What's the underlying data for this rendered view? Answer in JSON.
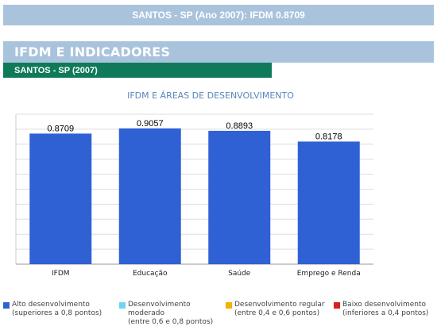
{
  "top_banner": {
    "title": "SANTOS - SP (Ano 2007): IFDM 0.8709"
  },
  "section": {
    "title": "IFDM E INDICADORES"
  },
  "subsection": {
    "title": "SANTOS - SP (2007)"
  },
  "chart_data": {
    "type": "bar",
    "title": "IFDM E ÁREAS DE DESENVOLVIMENTO",
    "categories": [
      "IFDM",
      "Educação",
      "Saúde",
      "Emprego e Renda"
    ],
    "values": [
      0.8709,
      0.9057,
      0.8893,
      0.8178
    ],
    "value_labels": [
      "0.8709",
      "0.9057",
      "0.8893",
      "0.8178"
    ],
    "ylim": [
      0,
      1
    ],
    "grid": true,
    "bar_color": "#3061d4"
  },
  "legend": [
    {
      "line1": "Alto desenvolvimento",
      "line2": "(superiores a 0,8 pontos)",
      "color": "#3061d4"
    },
    {
      "line1": "Desenvolvimento moderado",
      "line2": "(entre 0,6 e 0,8 pontos)",
      "color": "#6dd5f0"
    },
    {
      "line1": "Desenvolvimento regular",
      "line2": "(entre 0,4 e 0,6 pontos)",
      "color": "#f0b400"
    },
    {
      "line1": "Baixo desenvolvimento",
      "line2": "(inferiores a 0,4 pontos)",
      "color": "#d92020"
    }
  ]
}
